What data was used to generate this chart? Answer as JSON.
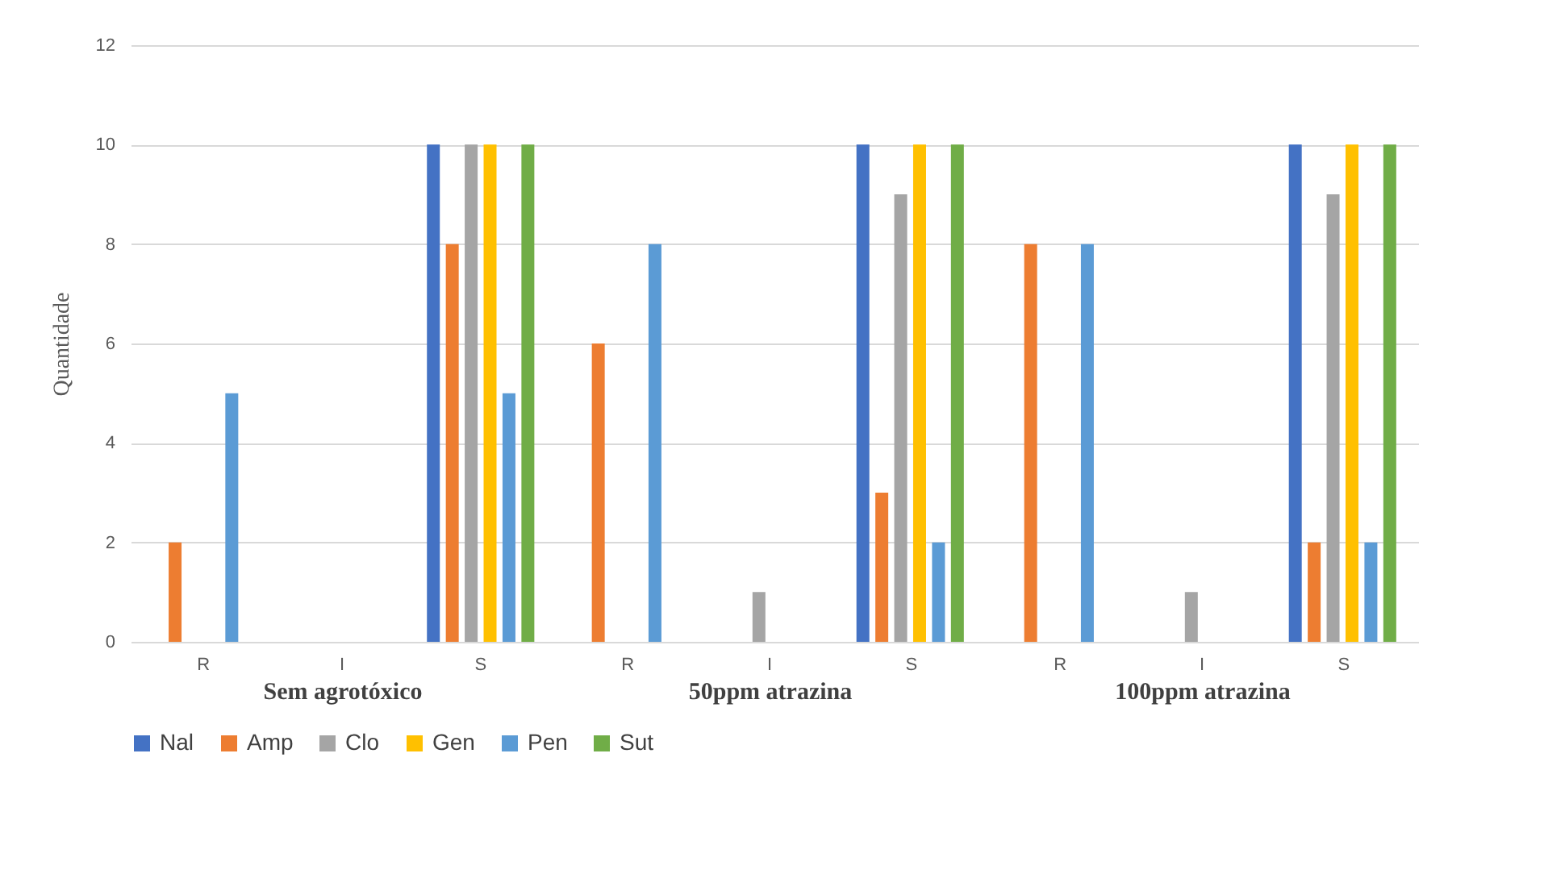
{
  "chart_data": [
    {
      "type": "bar",
      "xlabel": "Sem agrotóxico",
      "ylabel": "Quantidade",
      "categories": [
        "R",
        "I",
        "S"
      ],
      "ylim": [
        0,
        12
      ],
      "yticks": [
        0,
        2,
        4,
        6,
        8,
        10,
        12
      ],
      "grid": "y",
      "legend": "bottom",
      "series": [
        {
          "name": "Nal",
          "color": "#4472c4",
          "values": [
            0,
            0,
            10
          ]
        },
        {
          "name": "Amp",
          "color": "#ed7d31",
          "values": [
            2,
            0,
            8
          ]
        },
        {
          "name": "Clo",
          "color": "#a5a5a5",
          "values": [
            0,
            0,
            10
          ]
        },
        {
          "name": "Gen",
          "color": "#ffc000",
          "values": [
            0,
            0,
            10
          ]
        },
        {
          "name": "Pen",
          "color": "#5b9bd5",
          "values": [
            5,
            0,
            5
          ]
        },
        {
          "name": "Sut",
          "color": "#70ad47",
          "values": [
            0,
            0,
            10
          ]
        }
      ]
    },
    {
      "type": "bar",
      "xlabel": "50ppm atrazina",
      "categories": [
        "R",
        "I",
        "S"
      ],
      "ylim": [
        0,
        12
      ],
      "yticks": [
        0,
        2,
        4,
        6,
        8,
        10,
        12
      ],
      "grid": "y",
      "legend": "bottom",
      "tick_labels": "x",
      "series": [
        {
          "name": "Nal",
          "color": "#4472c4",
          "values": [
            0,
            0,
            10
          ]
        },
        {
          "name": "Amp",
          "color": "#ed7d31",
          "values": [
            6,
            0,
            3
          ]
        },
        {
          "name": "Clo",
          "color": "#a5a5a5",
          "values": [
            0,
            1,
            9
          ]
        },
        {
          "name": "Gen",
          "color": "#ffc000",
          "values": [
            0,
            0,
            10
          ]
        },
        {
          "name": "Pen",
          "color": "#5b9bd5",
          "values": [
            8,
            0,
            2
          ]
        },
        {
          "name": "Sut",
          "color": "#70ad47",
          "values": [
            0,
            0,
            10
          ]
        }
      ]
    },
    {
      "type": "bar",
      "xlabel": "100ppm atrazina",
      "categories": [
        "R",
        "I",
        "S"
      ],
      "ylim": [
        0,
        12
      ],
      "yticks": [
        0,
        2,
        4,
        6,
        8,
        10,
        12
      ],
      "grid": "y",
      "legend": "bottom",
      "tick_labels": "x",
      "series": [
        {
          "name": "Nal",
          "color": "#4472c4",
          "values": [
            0,
            0,
            10
          ]
        },
        {
          "name": "Amp",
          "color": "#ed7d31",
          "values": [
            8,
            0,
            2
          ]
        },
        {
          "name": "Clo",
          "color": "#a5a5a5",
          "values": [
            0,
            1,
            9
          ]
        },
        {
          "name": "Gen",
          "color": "#ffc000",
          "values": [
            0,
            0,
            10
          ]
        },
        {
          "name": "Pen",
          "color": "#5b9bd5",
          "values": [
            8,
            0,
            2
          ]
        },
        {
          "name": "Sut",
          "color": "#70ad47",
          "values": [
            0,
            0,
            10
          ]
        }
      ]
    }
  ]
}
